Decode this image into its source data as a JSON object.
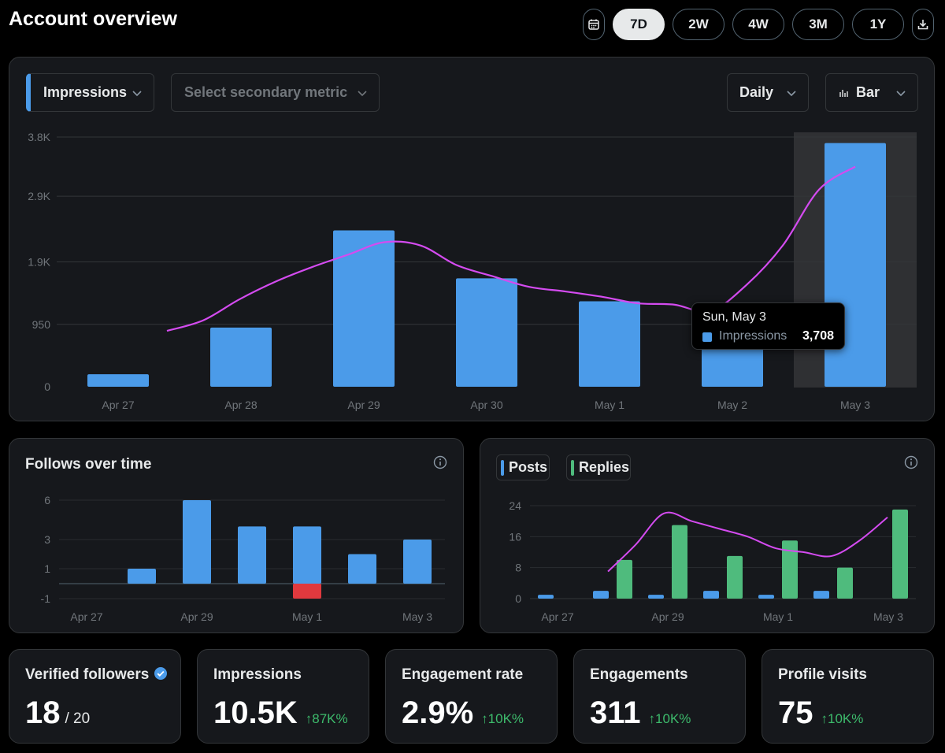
{
  "page": {
    "title": "Account overview"
  },
  "range": {
    "calendar_icon": "calendar-icon",
    "download_icon": "download-icon",
    "options": [
      "7D",
      "2W",
      "4W",
      "3M",
      "1Y"
    ],
    "selected": "7D"
  },
  "main_chart": {
    "primary_metric": "Impressions",
    "secondary_placeholder": "Select secondary metric",
    "granularity": "Daily",
    "chart_style": "Bar",
    "colors": {
      "bar": "#4b9be9",
      "line": "#d44bf0",
      "highlight": "#2f3033"
    },
    "tooltip": {
      "date": "Sun, May 3",
      "series": "Impressions",
      "value": "3,708"
    }
  },
  "follows": {
    "title": "Follows over time"
  },
  "posts_replies": {
    "legend": [
      {
        "label": "Posts",
        "color": "#4b9be9"
      },
      {
        "label": "Replies",
        "color": "#4fbb7d"
      }
    ]
  },
  "stats": [
    {
      "label": "Verified followers",
      "value": "18",
      "sub": "/ 20",
      "change": "",
      "verified": true
    },
    {
      "label": "Impressions",
      "value": "10.5K",
      "sub": "",
      "change": "↑87K%"
    },
    {
      "label": "Engagement rate",
      "value": "2.9%",
      "sub": "",
      "change": "↑10K%"
    },
    {
      "label": "Engagements",
      "value": "311",
      "sub": "",
      "change": "↑10K%"
    },
    {
      "label": "Profile visits",
      "value": "75",
      "sub": "",
      "change": "↑10K%"
    }
  ],
  "chart_data": [
    {
      "type": "bar",
      "name": "main",
      "categories": [
        "Apr 27",
        "Apr 28",
        "Apr 29",
        "Apr 30",
        "May 1",
        "May 2",
        "May 3"
      ],
      "series": [
        {
          "name": "Impressions",
          "values": [
            190,
            900,
            2380,
            1650,
            1300,
            870,
            3708
          ]
        }
      ],
      "trend_line": [
        850,
        1010,
        1330,
        1600,
        1820,
        2010,
        2200,
        2150,
        1850,
        1680,
        1520,
        1450,
        1370,
        1270,
        1250,
        1150,
        1550,
        2150,
        3000,
        3350
      ],
      "yticks": [
        "0",
        "950",
        "1.9K",
        "2.9K",
        "3.8K"
      ],
      "ylim": [
        0,
        3800
      ],
      "highlight_category": "May 3",
      "grid": true
    },
    {
      "type": "bar",
      "name": "follows",
      "categories": [
        "Apr 27",
        "Apr 28",
        "Apr 29",
        "Apr 30",
        "May 1",
        "May 2",
        "May 3"
      ],
      "x_tick_labels": [
        "Apr 27",
        "Apr 29",
        "May 1",
        "May 3"
      ],
      "series": [
        {
          "values": [
            0,
            1,
            6,
            4,
            4,
            2,
            3
          ],
          "color": "#4b9be9"
        },
        {
          "values": [
            0,
            0,
            0,
            0,
            -1,
            0,
            0
          ],
          "color": "#e0393e"
        }
      ],
      "yticks": [
        "-1",
        "1",
        "3",
        "6"
      ],
      "ylim": [
        -1,
        6
      ],
      "grid": true
    },
    {
      "type": "bar",
      "name": "posts-replies",
      "categories": [
        "Apr 27",
        "Apr 28",
        "Apr 29",
        "Apr 30",
        "May 1",
        "May 2",
        "May 3"
      ],
      "x_tick_labels": [
        "Apr 27",
        "Apr 29",
        "May 1",
        "May 3"
      ],
      "series": [
        {
          "name": "Posts",
          "values": [
            1,
            2,
            1,
            2,
            1,
            2,
            0
          ]
        },
        {
          "name": "Replies",
          "values": [
            0,
            10,
            19,
            11,
            15,
            8,
            23
          ]
        }
      ],
      "trend_line": [
        7,
        14,
        22,
        20,
        18,
        16,
        13,
        12,
        11,
        15,
        21
      ],
      "yticks": [
        "0",
        "8",
        "16",
        "24"
      ],
      "ylim": [
        0,
        24
      ],
      "grid": true
    }
  ]
}
